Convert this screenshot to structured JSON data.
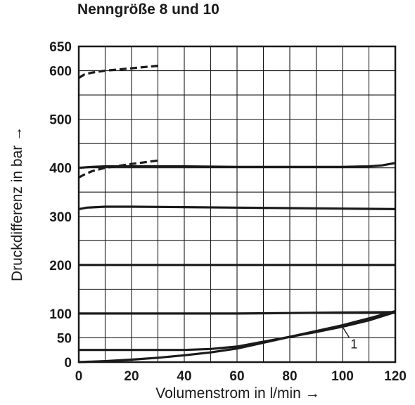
{
  "chart_data": {
    "type": "line",
    "title": "Nenngröße 8 und 10",
    "xlabel": "Volumenstrom in l/min →",
    "ylabel": "Druckdifferenz in bar →",
    "xlim": [
      0,
      120
    ],
    "ylim": [
      0,
      650
    ],
    "x_ticks": [
      0,
      20,
      40,
      60,
      80,
      100,
      120
    ],
    "x_tick_labels": [
      "0",
      "20",
      "40",
      "60",
      "80",
      "100",
      "120"
    ],
    "y_ticks": [
      0,
      50,
      100,
      200,
      300,
      400,
      500,
      600,
      650
    ],
    "y_tick_labels": [
      "0",
      "50",
      "100",
      "200",
      "300",
      "400",
      "500",
      "600",
      "650"
    ],
    "grid": true,
    "grid_x_step": 10,
    "grid_y_step": 50,
    "series": [
      {
        "style": "dashed",
        "x": [
          0,
          2,
          5,
          10,
          20,
          30
        ],
        "y": [
          585,
          592,
          596,
          600,
          605,
          610
        ]
      },
      {
        "style": "dashed",
        "x": [
          0,
          2,
          5,
          10,
          20,
          30
        ],
        "y": [
          380,
          386,
          393,
          400,
          408,
          415
        ]
      },
      {
        "style": "solid",
        "x": [
          0,
          5,
          10,
          20,
          40,
          60,
          80,
          100,
          110,
          115,
          120
        ],
        "y": [
          400,
          402,
          403,
          403,
          403,
          402,
          402,
          402,
          403,
          405,
          410
        ]
      },
      {
        "style": "solid",
        "x": [
          0,
          3,
          10,
          20,
          40,
          60,
          80,
          100,
          120
        ],
        "y": [
          315,
          318,
          320,
          320,
          319,
          318,
          317,
          316,
          315
        ]
      },
      {
        "style": "solid",
        "x": [
          0,
          120
        ],
        "y": [
          200,
          200
        ]
      },
      {
        "style": "solid",
        "x": [
          0,
          20,
          40,
          60,
          80,
          100,
          120
        ],
        "y": [
          100,
          100,
          100,
          100,
          101,
          102,
          103
        ]
      },
      {
        "style": "solid",
        "x": [
          0,
          20,
          40,
          50,
          60,
          70,
          80,
          90,
          100,
          110,
          120
        ],
        "y": [
          25,
          25,
          25,
          27,
          32,
          42,
          52,
          62,
          73,
          86,
          103
        ]
      },
      {
        "style": "solid",
        "label": "1",
        "x": [
          0,
          10,
          20,
          30,
          40,
          50,
          60,
          70,
          80,
          90,
          100,
          110,
          120
        ],
        "y": [
          0,
          2,
          5,
          9,
          14,
          20,
          28,
          40,
          52,
          64,
          76,
          90,
          105
        ]
      }
    ],
    "annotations": [
      {
        "text": "1",
        "x": 103,
        "y": 28,
        "points_to_x": 100,
        "points_to_y": 76
      }
    ]
  }
}
